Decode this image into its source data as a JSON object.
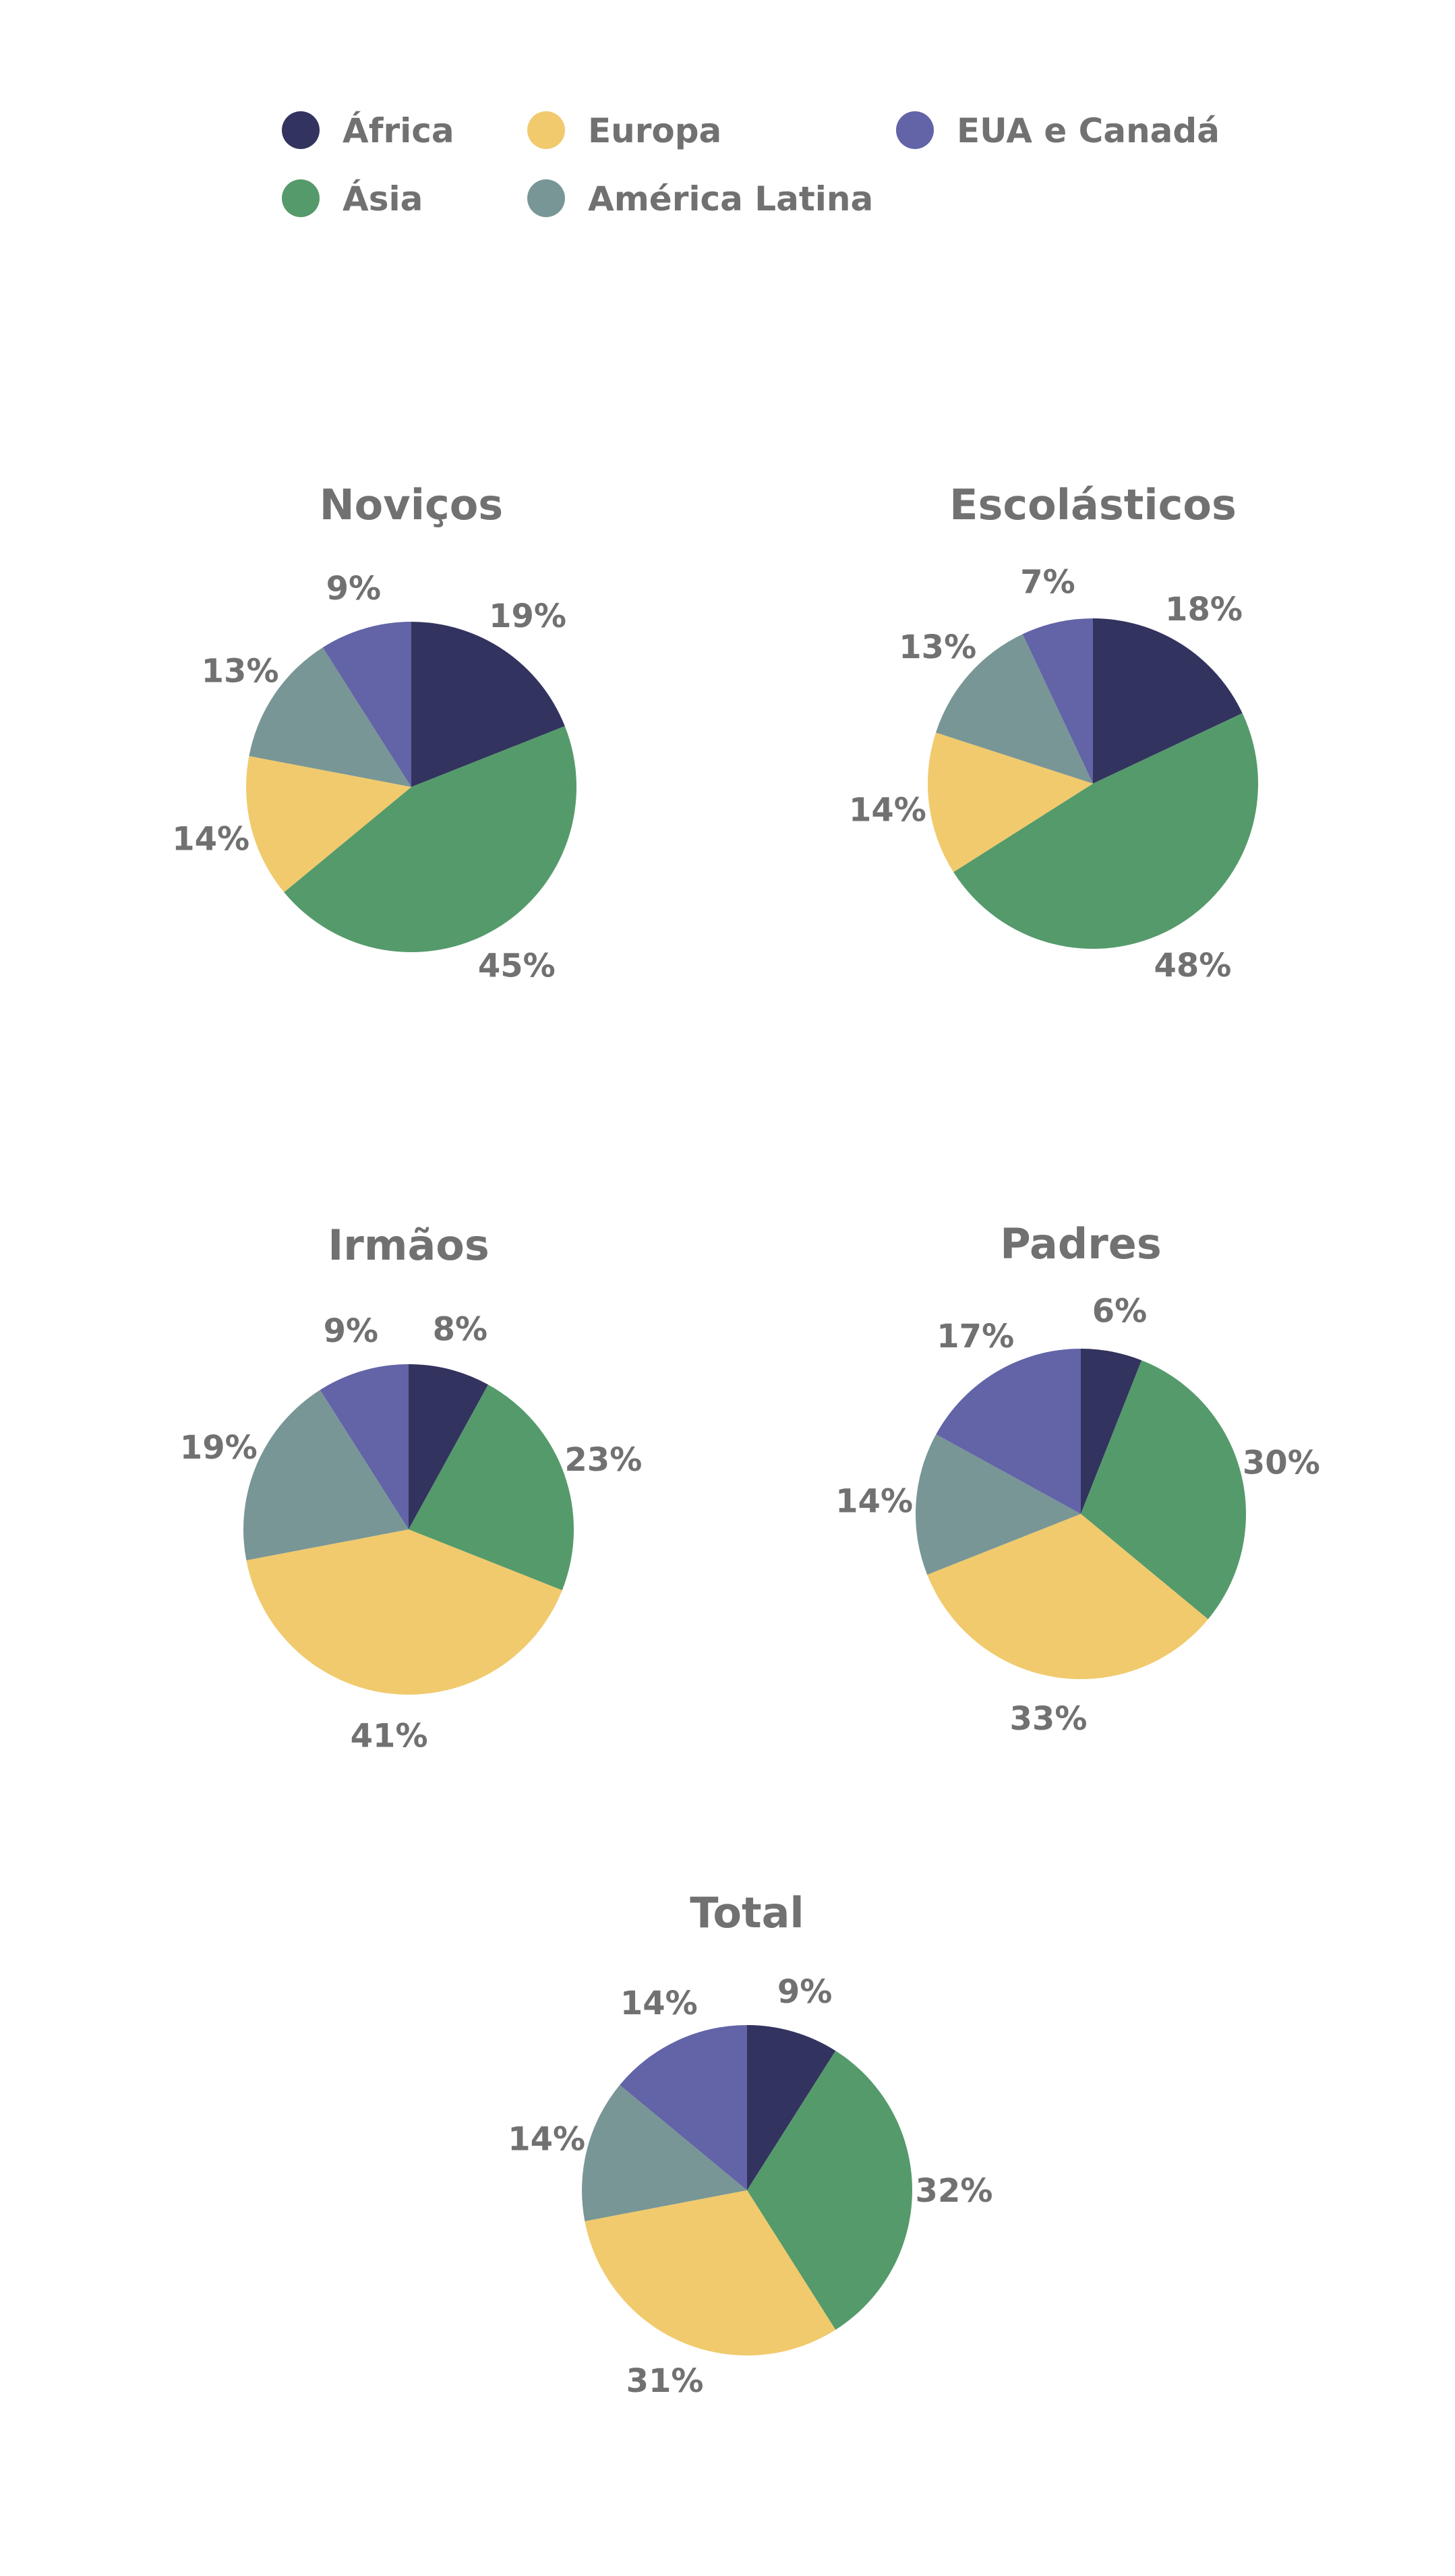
{
  "chart_data": {
    "type": "pie",
    "legend": {
      "placement": "top",
      "entries": [
        {
          "key": "africa",
          "label": "África",
          "color": "#33335F"
        },
        {
          "key": "europa",
          "label": "Europa",
          "color": "#F0CA6D"
        },
        {
          "key": "eua",
          "label": "EUA e Canadá",
          "color": "#6264A7"
        },
        {
          "key": "asia",
          "label": "Ásia",
          "color": "#559A6B"
        },
        {
          "key": "latina",
          "label": "América Latina",
          "color": "#799696"
        }
      ]
    },
    "charts": [
      {
        "title": "Noviços",
        "slices": [
          {
            "key": "africa",
            "value": 19,
            "label": "19%"
          },
          {
            "key": "asia",
            "value": 45,
            "label": "45%"
          },
          {
            "key": "europa",
            "value": 14,
            "label": "14%"
          },
          {
            "key": "latina",
            "value": 13,
            "label": "13%"
          },
          {
            "key": "eua",
            "value": 9,
            "label": "9%"
          }
        ]
      },
      {
        "title": "Escolásticos",
        "slices": [
          {
            "key": "africa",
            "value": 18,
            "label": "18%"
          },
          {
            "key": "asia",
            "value": 48,
            "label": "48%"
          },
          {
            "key": "europa",
            "value": 14,
            "label": "14%"
          },
          {
            "key": "latina",
            "value": 13,
            "label": "13%"
          },
          {
            "key": "eua",
            "value": 7,
            "label": "7%"
          }
        ]
      },
      {
        "title": "Irmãos",
        "slices": [
          {
            "key": "africa",
            "value": 8,
            "label": "8%"
          },
          {
            "key": "asia",
            "value": 23,
            "label": "23%"
          },
          {
            "key": "europa",
            "value": 41,
            "label": "41%"
          },
          {
            "key": "latina",
            "value": 19,
            "label": "19%"
          },
          {
            "key": "eua",
            "value": 9,
            "label": "9%"
          }
        ]
      },
      {
        "title": "Padres",
        "slices": [
          {
            "key": "africa",
            "value": 6,
            "label": "6%"
          },
          {
            "key": "asia",
            "value": 30,
            "label": "30%"
          },
          {
            "key": "europa",
            "value": 33,
            "label": "33%"
          },
          {
            "key": "latina",
            "value": 14,
            "label": "14%"
          },
          {
            "key": "eua",
            "value": 17,
            "label": "17%"
          }
        ]
      },
      {
        "title": "Total",
        "slices": [
          {
            "key": "africa",
            "value": 9,
            "label": "9%"
          },
          {
            "key": "asia",
            "value": 32,
            "label": "32%"
          },
          {
            "key": "europa",
            "value": 31,
            "label": "31%"
          },
          {
            "key": "latina",
            "value": 14,
            "label": "14%"
          },
          {
            "key": "eua",
            "value": 14,
            "label": "14%"
          }
        ]
      }
    ]
  }
}
